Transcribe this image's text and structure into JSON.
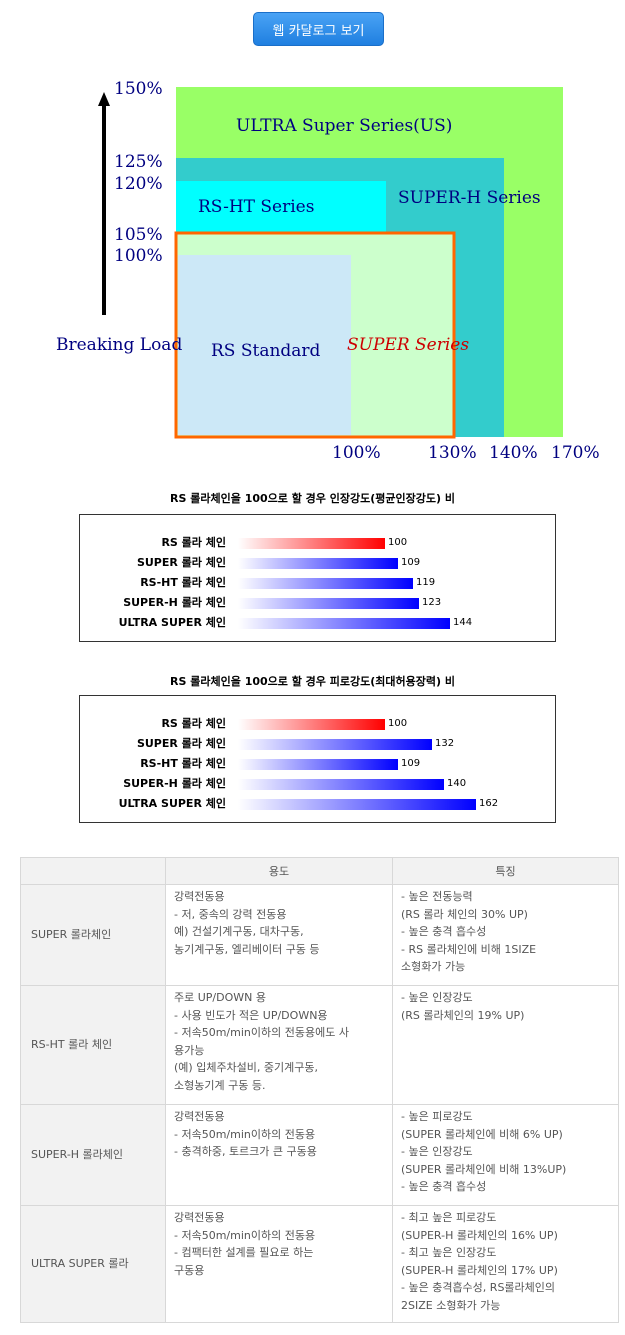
{
  "catalog_button": "웹 카달로그 보기",
  "diagram": {
    "y_ticks": [
      "150%",
      "125%",
      "120%",
      "105%",
      "100%"
    ],
    "x_ticks": [
      "100%",
      "130%",
      "140%",
      "170%"
    ],
    "y_axis_label": "Breaking Load",
    "boxes": {
      "ultra": "ULTRA Super Series(US)",
      "super_h": "SUPER-H Series",
      "rs_ht": "RS-HT Series",
      "super": "SUPER Series",
      "rs_standard": "RS Standard"
    },
    "colors": {
      "ultra": "#99ff66",
      "super_h": "#33cccc",
      "rs_ht": "#00ffff",
      "super": "#ccffcc",
      "rs_standard": "#cce8f7",
      "super_border": "#ff6600",
      "axis_text": "#000080",
      "super_text": "#cc0000"
    }
  },
  "chart1": {
    "title": "RS 롤라체인을 100으로 할 경우 인장강도(평균인장강도) 비",
    "rows": [
      {
        "label": "RS 롤라 체인",
        "value": 100,
        "value_label": "100",
        "color": "red"
      },
      {
        "label": "SUPER 롤라 체인",
        "value": 109,
        "value_label": "109",
        "color": "blue"
      },
      {
        "label": "RS-HT 롤라 체인",
        "value": 119,
        "value_label": "119",
        "color": "blue"
      },
      {
        "label": "SUPER-H 롤라 체인",
        "value": 123,
        "value_label": "123",
        "color": "blue"
      },
      {
        "label": "ULTRA SUPER 체인",
        "value": 144,
        "value_label": "144",
        "color": "blue"
      }
    ]
  },
  "chart2": {
    "title": "RS 롤라체인을 100으로 할 경우 피로강도(최대허용장력) 비",
    "rows": [
      {
        "label": "RS 롤라 체인",
        "value": 100,
        "value_label": "100",
        "color": "red"
      },
      {
        "label": "SUPER 롤라 체인",
        "value": 132,
        "value_label": "132",
        "color": "blue"
      },
      {
        "label": "RS-HT 롤라 체인",
        "value": 109,
        "value_label": "109",
        "color": "blue"
      },
      {
        "label": "SUPER-H 롤라 체인",
        "value": 140,
        "value_label": "140",
        "color": "blue"
      },
      {
        "label": "ULTRA SUPER 체인",
        "value": 162,
        "value_label": "162",
        "color": "blue"
      }
    ]
  },
  "table": {
    "headers": [
      "",
      "용도",
      "특징"
    ],
    "rows": [
      {
        "name": "SUPER 롤라체인",
        "usage": [
          "강력전동용",
          "- 저, 중속의 강력 전동용",
          "예) 건설기계구동, 대차구동,",
          "농기계구동, 엘리베이터 구동 등"
        ],
        "features": [
          "- 높은 전동능력",
          "(RS 롤라 체인의 30% UP)",
          "- 높은 충격 흡수성",
          "- RS 롤라체인에 비해 1SIZE",
          "소형화가 가능"
        ]
      },
      {
        "name": "RS-HT 롤라 체인",
        "usage": [
          "주로 UP/DOWN 용",
          "- 사용 빈도가 적은 UP/DOWN용",
          "- 저속50m/min이하의 전동용에도 사",
          "용가능",
          "(예) 입체주차설비, 중기계구동,",
          "소형농기계 구동 등."
        ],
        "features": [
          "- 높은 인장강도",
          "(RS 롤라체인의 19% UP)"
        ]
      },
      {
        "name": "SUPER-H 롤라체인",
        "usage": [
          "강력전동용",
          "- 저속50m/min이하의 전동용",
          "- 충격하중, 토르크가 큰 구동용"
        ],
        "features": [
          "- 높은 피로강도",
          "(SUPER 롤라체인에 비해 6% UP)",
          "- 높은 인장강도",
          "(SUPER 롤라체인에 비해 13%UP)",
          "- 높은 충격 흡수성"
        ]
      },
      {
        "name": "ULTRA SUPER 롤라",
        "usage": [
          "강력전동용",
          "- 저속50m/min이하의 전동용",
          "- 컴팩터한 설계를 필요로 하는",
          "구동용"
        ],
        "features": [
          "- 최고 높은 피로강도",
          "(SUPER-H 롤라체인의 16% UP)",
          "- 최고 높은 인장강도",
          "(SUPER-H 롤라체인의 17% UP)",
          "- 높은 충격흡수성, RS롤라체인의",
          "2SIZE 소형화가 가능"
        ]
      }
    ]
  }
}
